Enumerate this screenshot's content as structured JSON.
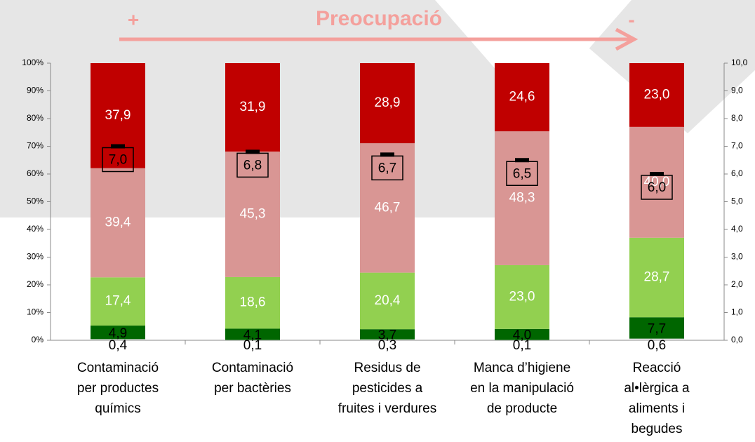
{
  "chart_data": {
    "type": "bar",
    "stacked": true,
    "header": {
      "left": "+",
      "title": "Preocupació",
      "right": "-"
    },
    "categories": [
      "Contaminació\nper productes\nquímics",
      "Contaminació\nper bactèries",
      "Residus de\npesticides a\nfruites i verdures",
      "Manca d’higiene\nen la manipulació\nde producte",
      "Reacció\nal•lèrgica a\naliments i\nbegudes"
    ],
    "series": [
      {
        "color": "#d9d9d9",
        "values": [
          0.4,
          0.1,
          0.3,
          0.1,
          0.6
        ],
        "value_labels": [
          "0,4",
          "0,1",
          "0,3",
          "0,1",
          "0,6"
        ]
      },
      {
        "color": "#006600",
        "values": [
          4.9,
          4.1,
          3.7,
          4.0,
          7.7
        ],
        "value_labels": [
          "4,9",
          "4,1",
          "3,7",
          "4,0",
          "7,7"
        ]
      },
      {
        "color": "#92d050",
        "values": [
          17.4,
          18.6,
          20.4,
          23.0,
          28.7
        ],
        "value_labels": [
          "17,4",
          "18,6",
          "20,4",
          "23,0",
          "28,7"
        ]
      },
      {
        "color": "#d99694",
        "values": [
          39.4,
          45.3,
          46.7,
          48.3,
          40.0
        ],
        "value_labels": [
          "39,4",
          "45,3",
          "46,7",
          "48,3",
          "40,0"
        ]
      },
      {
        "color": "#c00000",
        "values": [
          37.9,
          31.9,
          28.9,
          24.6,
          23.0
        ],
        "value_labels": [
          "37,9",
          "31,9",
          "28,9",
          "24,6",
          "23,0"
        ]
      }
    ],
    "markers": {
      "axis": "y2",
      "color": "#000000",
      "values": [
        7.0,
        6.8,
        6.7,
        6.5,
        6.0
      ],
      "value_labels": [
        "7,0",
        "6,8",
        "6,7",
        "6,5",
        "6,0"
      ]
    },
    "ylim": [
      0,
      100
    ],
    "yticks": [
      {
        "value": 0,
        "label": "0%"
      },
      {
        "value": 10,
        "label": "10%"
      },
      {
        "value": 20,
        "label": "20%"
      },
      {
        "value": 30,
        "label": "30%"
      },
      {
        "value": 40,
        "label": "40%"
      },
      {
        "value": 50,
        "label": "50%"
      },
      {
        "value": 60,
        "label": "60%"
      },
      {
        "value": 70,
        "label": "70%"
      },
      {
        "value": 80,
        "label": "80%"
      },
      {
        "value": 90,
        "label": "90%"
      },
      {
        "value": 100,
        "label": "100%"
      }
    ],
    "y2lim": [
      0,
      10
    ],
    "y2ticks": [
      {
        "value": 0,
        "label": "0,0"
      },
      {
        "value": 1,
        "label": "1,0"
      },
      {
        "value": 2,
        "label": "2,0"
      },
      {
        "value": 3,
        "label": "3,0"
      },
      {
        "value": 4,
        "label": "4,0"
      },
      {
        "value": 5,
        "label": "5,0"
      },
      {
        "value": 6,
        "label": "6,0"
      },
      {
        "value": 7,
        "label": "7,0"
      },
      {
        "value": 8,
        "label": "8,0"
      },
      {
        "value": 9,
        "label": "9,0"
      },
      {
        "value": 10,
        "label": "10,0"
      }
    ]
  }
}
